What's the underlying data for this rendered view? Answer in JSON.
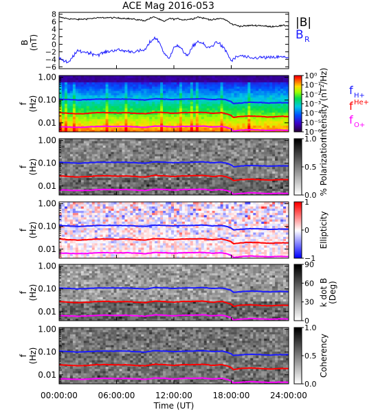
{
  "figure": {
    "title": "ACE Mag 2016-053",
    "time_axis_label": "Time (UT)",
    "time_ticks": [
      "00:00:00",
      "06:00:00",
      "12:00:00",
      "18:00:00",
      "24:00:00"
    ]
  },
  "colors": {
    "black": "#000000",
    "blue": "#1a1aff",
    "red": "#ff0000",
    "magenta": "#ff00ff"
  },
  "chart_data": [
    {
      "type": "line",
      "panel": "field",
      "ylabel": [
        "B",
        "(nT)"
      ],
      "ylim": [
        -6.5,
        8.5
      ],
      "y_ticks": [
        8,
        6,
        4,
        2,
        0,
        -2,
        -4,
        -6
      ],
      "x_range_hours": [
        0,
        24
      ],
      "legend": [
        {
          "label": "|B|",
          "color": "#000000"
        },
        {
          "label": "B",
          "sub": "R",
          "color": "#1a1aff"
        }
      ],
      "series": [
        {
          "name": "|B|",
          "color": "#000000",
          "x": [
            0,
            1,
            2,
            3,
            4,
            5,
            6,
            7,
            8,
            9,
            9.5,
            10,
            10.5,
            11,
            11.5,
            12,
            12.5,
            13,
            14,
            14.5,
            15,
            16,
            17,
            17.5,
            18,
            19,
            20,
            21,
            22,
            23,
            24
          ],
          "y": [
            7.2,
            6.8,
            6.6,
            6.8,
            7.0,
            7.1,
            7.0,
            6.9,
            6.6,
            6.3,
            6.9,
            7.3,
            6.6,
            6.0,
            6.9,
            6.7,
            6.8,
            6.5,
            6.8,
            7.3,
            7.0,
            6.5,
            6.9,
            6.4,
            5.4,
            4.8,
            5.0,
            5.0,
            4.7,
            4.9,
            5.0
          ]
        },
        {
          "name": "B_R",
          "color": "#1a1aff",
          "x": [
            0,
            0.5,
            1,
            1.5,
            2,
            3,
            4,
            5,
            6,
            7,
            8,
            9,
            9.5,
            10,
            10.5,
            11,
            11.5,
            12,
            12.5,
            13,
            13.5,
            14,
            14.5,
            15,
            15.5,
            16,
            16.5,
            17,
            17.5,
            18,
            18.5,
            19,
            20,
            21,
            22,
            23,
            24
          ],
          "y": [
            -3.5,
            -4.5,
            -5.0,
            -3.0,
            -1.8,
            -2.2,
            -2.8,
            -2.0,
            -1.5,
            -1.8,
            -2.0,
            -1.5,
            0.5,
            1.8,
            0.5,
            -2.5,
            -4.0,
            -0.5,
            -0.5,
            -2.0,
            -3.0,
            -0.5,
            0.8,
            0.2,
            -1.0,
            -0.5,
            0.8,
            -0.5,
            -2.0,
            -4.5,
            -3.5,
            -3.0,
            -3.8,
            -3.5,
            -3.6,
            -3.4,
            -3.5
          ]
        }
      ]
    },
    {
      "type": "heatmap",
      "panel": "intensity",
      "ylabel": [
        "f",
        "(Hz)"
      ],
      "y_scale": "log",
      "ylim": [
        0.004,
        1.2
      ],
      "y_ticks": [
        "1.00",
        "0.10",
        "0.01"
      ],
      "colorbar": {
        "palette": "rainbow",
        "label": "Intensity (nT²/Hz)",
        "scale": "log",
        "ticks": [
          "10⁰",
          "10⁻¹",
          "10⁻²",
          "10⁻³",
          "10⁻⁴",
          "10⁻⁵",
          "10⁻⁶"
        ]
      },
      "legend": [
        {
          "label": "f",
          "sub": "H+",
          "color": "#1a1aff"
        },
        {
          "label": "f",
          "sup": "He+",
          "color": "#ff0000"
        },
        {
          "label": "f",
          "sub": "O+",
          "color": "#ff00ff"
        }
      ]
    },
    {
      "type": "heatmap",
      "panel": "polarization",
      "ylabel": [
        "f",
        "(Hz)"
      ],
      "y_scale": "log",
      "y_ticks": [
        "1.00",
        "0.10",
        "0.01"
      ],
      "colorbar": {
        "palette": "gray",
        "label": "% Polarization",
        "ticks": [
          "1.0",
          "0.5",
          "0.0"
        ]
      }
    },
    {
      "type": "heatmap",
      "panel": "ellipticity",
      "ylabel": [
        "f",
        "(Hz)"
      ],
      "y_scale": "log",
      "y_ticks": [
        "1.00",
        "0.10",
        "0.01"
      ],
      "colorbar": {
        "palette": "bwr",
        "label": "Ellipticity",
        "ticks": [
          "1",
          "0",
          "−1"
        ]
      }
    },
    {
      "type": "heatmap",
      "panel": "kdotb",
      "ylabel": [
        "f",
        "(Hz)"
      ],
      "y_scale": "log",
      "y_ticks": [
        "1.00",
        "0.10",
        "0.01"
      ],
      "colorbar": {
        "palette": "gray",
        "label": "k dot B",
        "label2": "(Deg)",
        "ticks": [
          "90",
          "60",
          "30",
          "0"
        ]
      }
    },
    {
      "type": "heatmap",
      "panel": "coherency",
      "ylabel": [
        "f",
        "(Hz)"
      ],
      "y_scale": "log",
      "y_ticks": [
        "1.00",
        "0.10",
        "0.01"
      ],
      "colorbar": {
        "palette": "gray",
        "label": "Coherency",
        "ticks": [
          "1.0",
          "0.5",
          "0.0"
        ]
      }
    }
  ],
  "gyro_lines": {
    "x": [
      0,
      1,
      2,
      3,
      4,
      5,
      6,
      7,
      8,
      9,
      10,
      11,
      12,
      13,
      14,
      15,
      16,
      17,
      17.5,
      18,
      18.2,
      19,
      20,
      21,
      22,
      23,
      24
    ],
    "f_H": [
      0.11,
      0.105,
      0.1,
      0.105,
      0.11,
      0.11,
      0.11,
      0.11,
      0.105,
      0.1,
      0.115,
      0.11,
      0.105,
      0.11,
      0.11,
      0.115,
      0.105,
      0.11,
      0.1,
      0.085,
      0.07,
      0.075,
      0.08,
      0.078,
      0.074,
      0.077,
      0.076
    ],
    "f_He": [
      0.028,
      0.026,
      0.025,
      0.026,
      0.028,
      0.028,
      0.027,
      0.028,
      0.026,
      0.025,
      0.029,
      0.028,
      0.026,
      0.028,
      0.028,
      0.029,
      0.026,
      0.028,
      0.025,
      0.021,
      0.017,
      0.019,
      0.02,
      0.019,
      0.018,
      0.019,
      0.019
    ],
    "f_O": [
      0.0068,
      0.0065,
      0.0063,
      0.0065,
      0.0069,
      0.007,
      0.0068,
      0.007,
      0.0066,
      0.0063,
      0.0072,
      0.007,
      0.0066,
      0.007,
      0.007,
      0.0072,
      0.0066,
      0.007,
      0.0063,
      0.0053,
      0.0043,
      0.0047,
      0.005,
      0.0048,
      0.0046,
      0.0048,
      0.0047
    ]
  }
}
